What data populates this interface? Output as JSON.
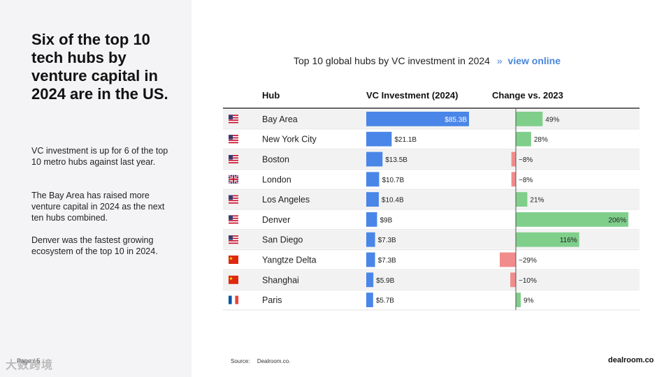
{
  "headline": "Six of the top 10 tech hubs by venture capital in 2024 are in the US.",
  "paragraphs": [
    "VC investment is up for 6 of the top 10 metro hubs against last year.",
    "The Bay Area has raised more venture capital in 2024 as the next ten hubs combined.",
    "Denver was the fastest growing ecosystem of the top 10 in 2024."
  ],
  "page_label": "Page / 5",
  "watermark": "大数跨境",
  "view_online": {
    "arrow": "»",
    "label": "view online"
  },
  "colors": {
    "bar_blue": "#4a86e8",
    "pos_green": "#7fcf8b",
    "neg_red": "#f28b8b",
    "row_shade": "#f2f2f2"
  },
  "chart_data": {
    "type": "table",
    "title": "Top 10 global hubs by VC investment in 2024",
    "columns": [
      "Hub",
      "VC Investment (2024)",
      "Change vs. 2023"
    ],
    "hubs": [
      "Bay Area",
      "New York City",
      "Boston",
      "London",
      "Los Angeles",
      "Denver",
      "San Diego",
      "Yangtze Delta",
      "Shanghai",
      "Paris"
    ],
    "flags": [
      "us-flag-icon",
      "us-flag-icon",
      "us-flag-icon",
      "uk-flag-icon",
      "us-flag-icon",
      "us-flag-icon",
      "us-flag-icon",
      "china-flag-icon",
      "china-flag-icon",
      "france-flag-icon"
    ],
    "vc_investment_billion_usd": [
      85.3,
      21.1,
      13.5,
      10.7,
      10.4,
      9,
      7.3,
      7.3,
      5.9,
      5.7
    ],
    "vc_labels": [
      "$85.3B",
      "$21.1B",
      "$13.5B",
      "$10.7B",
      "$10.4B",
      "$9B",
      "$7.3B",
      "$7.3B",
      "$5.9B",
      "$5.7B"
    ],
    "change_pct": [
      49,
      28,
      -8,
      -8,
      21,
      206,
      116,
      -29,
      -10,
      9
    ],
    "change_labels": [
      "49%",
      "28%",
      "−8%",
      "−8%",
      "21%",
      "206%",
      "116%",
      "−29%",
      "−10%",
      "9%"
    ],
    "vc_xlim": [
      0,
      85.3
    ],
    "change_xlim": [
      -29,
      206
    ]
  },
  "source": {
    "label": "Source:",
    "value": "Dealroom.co."
  },
  "brand": "dealroom.co"
}
